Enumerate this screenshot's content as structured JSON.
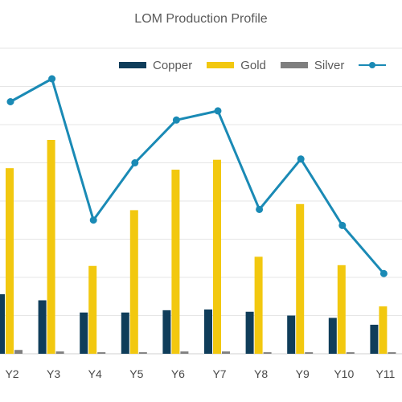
{
  "chart_data": {
    "type": "bar",
    "title": "LOM Production Profile",
    "categories": [
      "Y2",
      "Y3",
      "Y4",
      "Y5",
      "Y6",
      "Y7",
      "Y8",
      "Y9",
      "Y10",
      "Y11"
    ],
    "series": [
      {
        "name": "Copper",
        "kind": "bar",
        "color": "#0f3d5a",
        "values": [
          78,
          70,
          54,
          54,
          57,
          58,
          55,
          50,
          47,
          38
        ]
      },
      {
        "name": "Gold",
        "kind": "bar",
        "color": "#f2c80f",
        "values": [
          243,
          280,
          115,
          188,
          241,
          254,
          127,
          196,
          116,
          62
        ]
      },
      {
        "name": "Silver",
        "kind": "bar",
        "color": "#7f7f7f",
        "values": [
          5,
          3,
          2,
          2,
          3,
          3,
          2,
          2,
          2,
          2
        ]
      },
      {
        "name": "",
        "kind": "line",
        "color": "#1a8ab5",
        "values": [
          330,
          360,
          175,
          250,
          306,
          318,
          189,
          255,
          168,
          105
        ]
      }
    ],
    "ylim": [
      0,
      400
    ],
    "grid": true,
    "legend_position": "top"
  }
}
